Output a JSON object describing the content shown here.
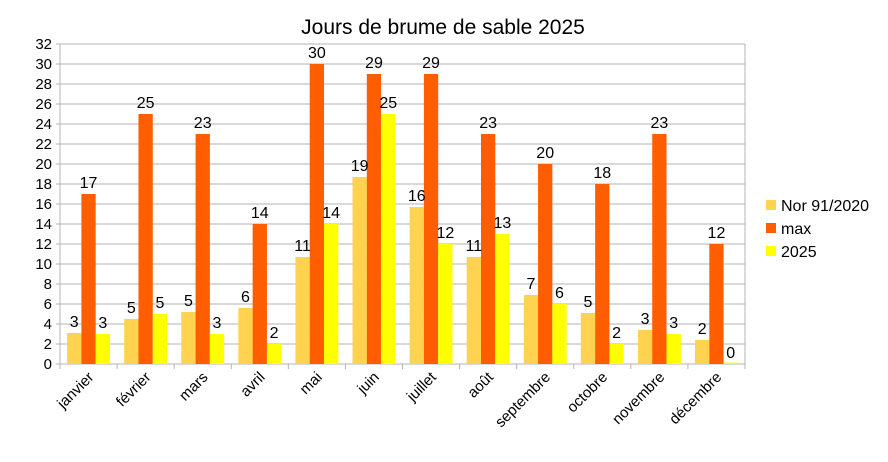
{
  "chart_data": {
    "type": "bar",
    "title": "Jours de brume de sable 2025",
    "categories": [
      "janvier",
      "février",
      "mars",
      "avril",
      "mai",
      "juin",
      "juillet",
      "août",
      "septembre",
      "octobre",
      "novembre",
      "décembre"
    ],
    "series": [
      {
        "name": "Nor 91/2020",
        "color": "#ffd34f",
        "values": [
          3.1,
          4.5,
          5.2,
          5.6,
          10.7,
          18.7,
          15.7,
          10.7,
          6.9,
          5.1,
          3.4,
          2.4
        ]
      },
      {
        "name": "max",
        "color": "#ff5e00",
        "values": [
          17,
          25,
          23,
          14,
          30,
          29,
          29,
          23,
          20,
          18,
          23,
          12
        ]
      },
      {
        "name": "2025",
        "color": "#ffff00",
        "values": [
          3,
          5,
          3,
          2,
          14,
          25,
          12,
          13,
          6,
          2,
          3,
          0
        ]
      }
    ],
    "ylim": [
      0,
      32
    ],
    "yticks": [
      0,
      2,
      4,
      6,
      8,
      10,
      12,
      14,
      16,
      18,
      20,
      22,
      24,
      26,
      28,
      30,
      32
    ],
    "grid": true,
    "legend": "right",
    "data_labels": true
  }
}
